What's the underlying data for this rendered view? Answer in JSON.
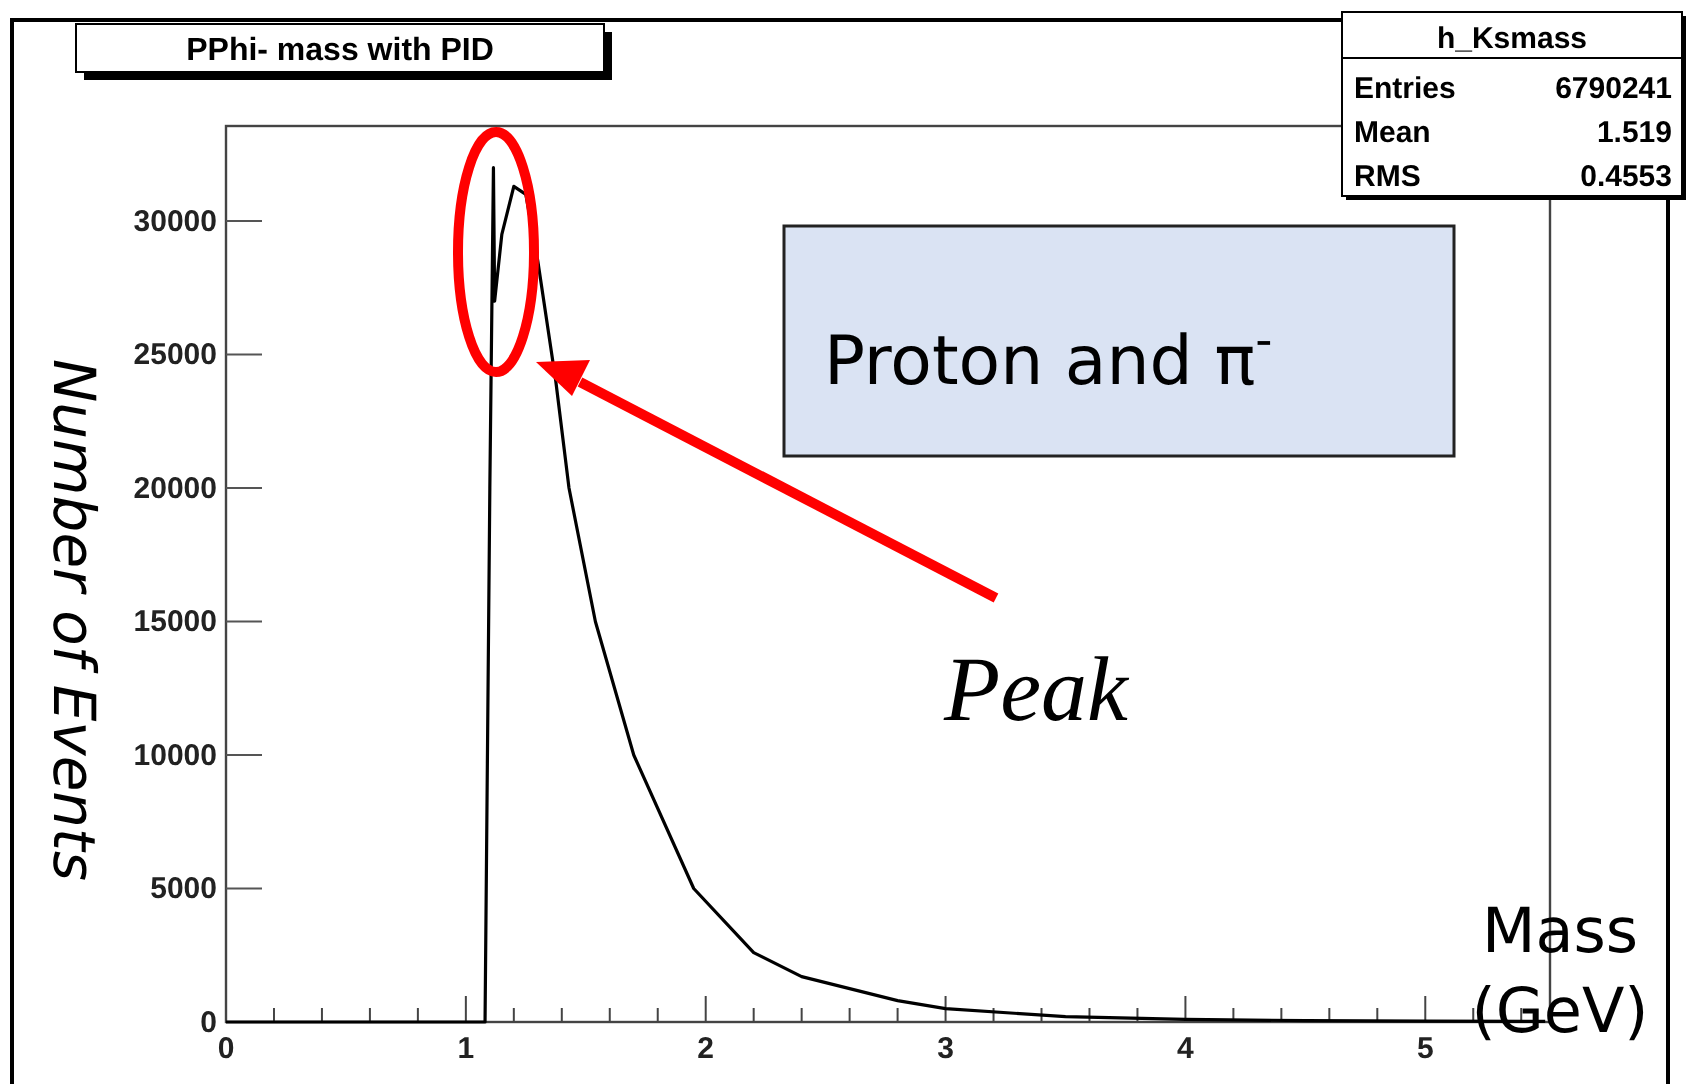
{
  "chart_data": {
    "type": "line",
    "title": "PPhi- mass with PID",
    "xlabel": "Mass (GeV)",
    "ylabel": "Number of Events",
    "x": [
      0,
      1.07,
      1.08,
      1.09,
      1.1,
      1.115,
      1.12,
      1.15,
      1.2,
      1.25,
      1.3,
      1.375,
      1.43,
      1.54,
      1.7,
      1.95,
      2.2,
      2.4,
      2.8,
      3.0,
      3.5,
      4.0,
      4.5,
      5.0,
      5.5
    ],
    "series": [
      {
        "color": "#000000",
        "values": [
          0,
          0,
          0,
          10000,
          20000,
          32000,
          27000,
          29500,
          31300,
          31000,
          28500,
          24000,
          20000,
          15000,
          10000,
          5000,
          2600,
          1700,
          800,
          500,
          200,
          100,
          50,
          30,
          20
        ]
      }
    ],
    "xlim": [
      0,
      5.52
    ],
    "ylim": [
      0,
      33560
    ],
    "xticks": [
      0,
      {
        "value": 0.2,
        "label": null
      },
      {
        "value": 0.4,
        "label": null
      },
      {
        "value": 0.6,
        "label": null
      },
      {
        "value": 0.8,
        "label": null
      },
      1,
      {
        "value": 1.2,
        "label": null
      },
      {
        "value": 1.4,
        "label": null
      },
      {
        "value": 1.6,
        "label": null
      },
      {
        "value": 1.8,
        "label": null
      },
      2,
      {
        "value": 2.2,
        "label": null
      },
      {
        "value": 2.4,
        "label": null
      },
      {
        "value": 2.6,
        "label": null
      },
      {
        "value": 2.8,
        "label": null
      },
      3,
      {
        "value": 3.2,
        "label": null
      },
      {
        "value": 3.4,
        "label": null
      },
      {
        "value": 3.6,
        "label": null
      },
      {
        "value": 3.8,
        "label": null
      },
      4,
      {
        "value": 4.2,
        "label": null
      },
      {
        "value": 4.4,
        "label": null
      },
      {
        "value": 4.6,
        "label": null
      },
      {
        "value": 4.8,
        "label": null
      },
      5,
      {
        "value": 5.2,
        "label": null
      },
      {
        "value": 5.4,
        "label": null
      }
    ],
    "yticks": [
      0,
      5000,
      10000,
      15000,
      20000,
      25000,
      30000
    ],
    "marker": "none",
    "line_style": "solid",
    "grid": false,
    "annotations": [
      "h_Ksmass",
      "Entries",
      "6790241",
      "Mean",
      "1.519",
      "RMS",
      "0.4553",
      "Proton and π$^{-}$",
      "Peak"
    ]
  }
}
